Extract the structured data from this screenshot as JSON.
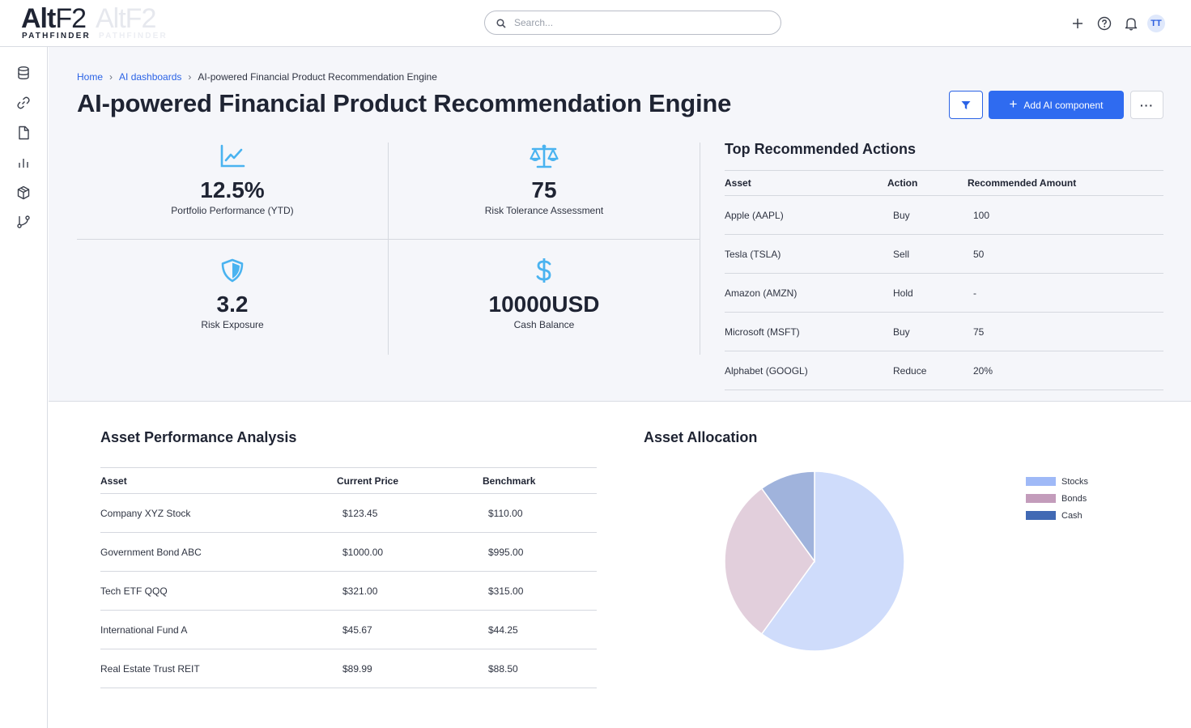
{
  "header": {
    "logo_main": "Alt",
    "logo_thin": "F2",
    "logo_ghost": "AltF2",
    "logo_tagline": "PATHFINDER",
    "search_placeholder": "Search...",
    "user_initials": "TT"
  },
  "sidebar": {
    "items": [
      {
        "icon": "database-icon"
      },
      {
        "icon": "link-icon"
      },
      {
        "icon": "document-icon"
      },
      {
        "icon": "bar-chart-icon"
      },
      {
        "icon": "cube-icon"
      },
      {
        "icon": "branch-icon"
      }
    ]
  },
  "breadcrumb": {
    "home": "Home",
    "parent": "AI dashboards",
    "current": "AI-powered Financial Product Recommendation Engine",
    "separator": "›"
  },
  "page": {
    "title": "AI-powered Financial Product Recommendation Engine",
    "add_button": "Add AI component",
    "add_button_icon": "+",
    "more_button": "···"
  },
  "kpis": [
    {
      "value": "12.5%",
      "label": "Portfolio Performance (YTD)",
      "icon": "line-chart-icon"
    },
    {
      "value": "75",
      "label": "Risk Tolerance Assessment",
      "icon": "scale-icon"
    },
    {
      "value": "3.2",
      "label": "Risk Exposure",
      "icon": "shield-icon"
    },
    {
      "value": "10000USD",
      "label": "Cash Balance",
      "icon": "dollar-icon"
    }
  ],
  "actions": {
    "title": "Top Recommended Actions",
    "columns": [
      "Asset",
      "Action",
      "Recommended Amount"
    ],
    "rows": [
      [
        "Apple (AAPL)",
        "Buy",
        "100"
      ],
      [
        "Tesla (TSLA)",
        "Sell",
        "50"
      ],
      [
        "Amazon (AMZN)",
        "Hold",
        "-"
      ],
      [
        "Microsoft (MSFT)",
        "Buy",
        "75"
      ],
      [
        "Alphabet (GOOGL)",
        "Reduce",
        "20%"
      ]
    ]
  },
  "performance": {
    "title": "Asset Performance Analysis",
    "columns": [
      "Asset",
      "Current Price",
      "Benchmark"
    ],
    "rows": [
      [
        "Company XYZ Stock",
        "$123.45",
        "$110.00"
      ],
      [
        "Government Bond ABC",
        "$1000.00",
        "$995.00"
      ],
      [
        "Tech ETF QQQ",
        "$321.00",
        "$315.00"
      ],
      [
        "International Fund A",
        "$45.67",
        "$44.25"
      ],
      [
        "Real Estate Trust REIT",
        "$89.99",
        "$88.50"
      ]
    ]
  },
  "allocation": {
    "title": "Asset Allocation"
  },
  "chart_data": {
    "type": "pie",
    "title": "Asset Allocation",
    "categories": [
      "Stocks",
      "Bonds",
      "Cash"
    ],
    "values": [
      60,
      30,
      10
    ],
    "slice_colors": [
      "#cfdcfb",
      "#e2cfdc",
      "#a0b3dc"
    ],
    "legend_colors": [
      "#9fb9f7",
      "#c39cbb",
      "#4169b4"
    ],
    "legend": "right"
  },
  "colors": {
    "accent": "#2f6bf0",
    "icon_blue": "#4ab3f0",
    "link": "#2b63e6"
  }
}
